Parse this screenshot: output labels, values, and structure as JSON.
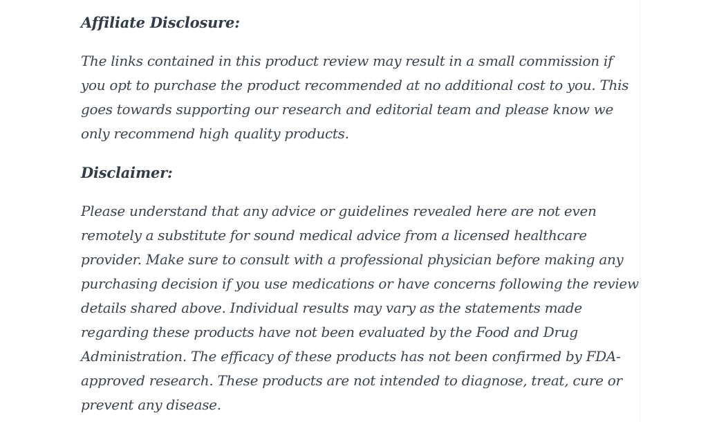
{
  "article": {
    "affiliate_heading": "Affiliate Disclosure:",
    "affiliate_lines": [
      "The links contained in this product review may result in a small commission if",
      "you opt to purchase the product recommended at no additional cost to you. This",
      "goes towards supporting our research and editorial team and please know we",
      "only recommend high quality products."
    ],
    "disclaimer_heading": "Disclaimer:",
    "disclaimer_lines": [
      "Please understand that any advice or guidelines revealed here are not even",
      "remotely a substitute for sound medical advice from a licensed healthcare",
      "provider. Make sure to consult with a professional physician before making any",
      "purchasing decision if you use medications or have concerns following the review",
      "details shared above. Individual results may vary as the statements made",
      "regarding these products have not been evaluated by the Food and Drug",
      "Administration. The efficacy of these products has not been confirmed by FDA-",
      "approved research. These products are not intended to diagnose, treat, cure or",
      "prevent any disease."
    ]
  },
  "colors": {
    "heading_text": "#333b46",
    "body_text": "#3c434d",
    "background": "#ffffff",
    "column_edge": "#f1f1f1"
  }
}
